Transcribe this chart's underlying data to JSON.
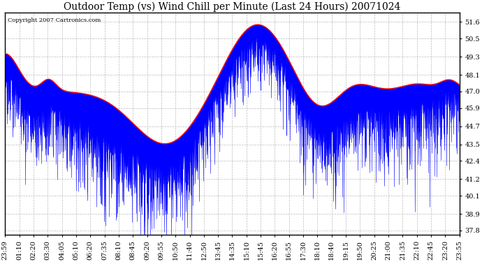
{
  "title": "Outdoor Temp (vs) Wind Chill per Minute (Last 24 Hours) 20071024",
  "copyright_text": "Copyright 2007 Cartronics.com",
  "x_labels": [
    "23:59",
    "01:10",
    "02:20",
    "03:30",
    "04:05",
    "05:10",
    "06:20",
    "07:35",
    "08:10",
    "08:45",
    "09:20",
    "09:55",
    "10:50",
    "11:40",
    "12:50",
    "13:45",
    "14:35",
    "15:10",
    "15:45",
    "16:20",
    "16:55",
    "17:30",
    "18:10",
    "18:40",
    "19:15",
    "19:50",
    "20:25",
    "21:00",
    "21:35",
    "22:10",
    "22:45",
    "23:20",
    "23:55"
  ],
  "y_ticks": [
    37.8,
    38.9,
    40.1,
    41.2,
    42.4,
    43.5,
    44.7,
    45.9,
    47.0,
    48.1,
    49.3,
    50.5,
    51.6
  ],
  "ylim": [
    37.5,
    52.2
  ],
  "background_color": "#ffffff",
  "grid_color": "#bbbbbb",
  "blue_color": "#0000ff",
  "red_color": "#ff0000",
  "title_fontsize": 10,
  "tick_fontsize": 7
}
